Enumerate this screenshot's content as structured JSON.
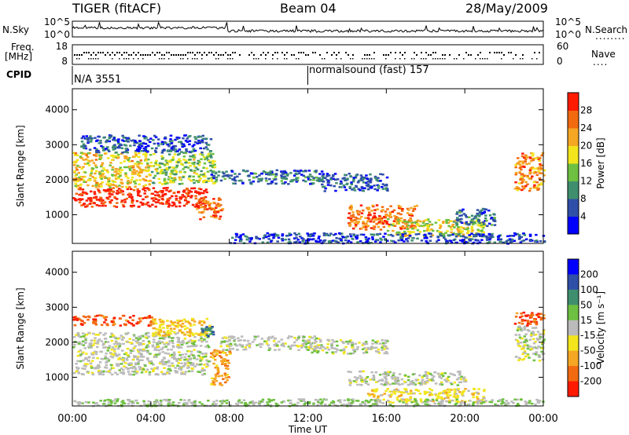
{
  "header": {
    "radar": "TIGER (fitACF)",
    "beam": "Beam 04",
    "date": "28/May/2009"
  },
  "noise_panel": {
    "left_label": "N.Sky",
    "right_label": "N.Search",
    "right_dots": "........",
    "y_ticks_left": [
      "10^5",
      "10^0"
    ],
    "y_ticks_right": [
      "10^5",
      "10^0"
    ]
  },
  "freq_panel": {
    "left_label_1": "Freq.",
    "left_label_2": "[MHz]",
    "right_label": "Nave",
    "right_dots": "....",
    "y_ticks_left": [
      "18",
      "8"
    ],
    "y_ticks_right": [
      "60",
      "0"
    ]
  },
  "cpid": {
    "label": "CPID",
    "segments": [
      {
        "name": "N/A 3551",
        "start_hour": 0
      },
      {
        "name": "normalsound (fast) 157",
        "start_hour": 12
      }
    ]
  },
  "chart_data": [
    {
      "type": "heatmap",
      "title": "",
      "xlabel": "",
      "ylabel": "Slant Range [km]",
      "x_range_hours": [
        0,
        24
      ],
      "x_ticks": [
        "00:00",
        "04:00",
        "08:00",
        "12:00",
        "16:00",
        "20:00",
        "00:00"
      ],
      "ylim": [
        180,
        4600
      ],
      "y_ticks": [
        1000,
        2000,
        3000,
        4000
      ],
      "colorbar": {
        "label": "Power [dB]",
        "ticks": [
          "4",
          "8",
          "12",
          "16",
          "20",
          "24",
          "28"
        ],
        "range": [
          0,
          30
        ],
        "colors": [
          "#0000ff",
          "#2f4fa8",
          "#3f8f6f",
          "#6ec040",
          "#f2e51c",
          "#f5a623",
          "#f26a10",
          "#ff1a00"
        ]
      },
      "regions": [
        {
          "t0": 0.0,
          "t1": 6.8,
          "r0": 1250,
          "r1": 1800,
          "value": 28
        },
        {
          "t0": 0.0,
          "t1": 4.0,
          "r0": 1800,
          "r1": 2800,
          "value": 18
        },
        {
          "t0": 4.0,
          "t1": 7.2,
          "r0": 1900,
          "r1": 2800,
          "value": 14
        },
        {
          "t0": 0.4,
          "t1": 7.0,
          "r0": 2800,
          "r1": 3300,
          "value": 6
        },
        {
          "t0": 6.3,
          "t1": 7.6,
          "r0": 900,
          "r1": 1500,
          "value": 24
        },
        {
          "t0": 7.0,
          "t1": 12.8,
          "r0": 1900,
          "r1": 2300,
          "value": 7
        },
        {
          "t0": 12.5,
          "t1": 16.0,
          "r0": 1700,
          "r1": 2200,
          "value": 6
        },
        {
          "t0": 14.0,
          "t1": 17.5,
          "r0": 600,
          "r1": 1300,
          "value": 24
        },
        {
          "t0": 16.0,
          "t1": 21.0,
          "r0": 400,
          "r1": 900,
          "value": 16
        },
        {
          "t0": 19.5,
          "t1": 21.5,
          "r0": 700,
          "r1": 1200,
          "value": 8
        },
        {
          "t0": 22.5,
          "t1": 24.0,
          "r0": 1700,
          "r1": 2800,
          "value": 22
        },
        {
          "t0": 8.0,
          "t1": 24.0,
          "r0": 200,
          "r1": 500,
          "value": 5
        }
      ]
    },
    {
      "type": "heatmap",
      "title": "",
      "xlabel": "Time UT",
      "ylabel": "Slant Range [km]",
      "x_range_hours": [
        0,
        24
      ],
      "x_ticks": [
        "00:00",
        "04:00",
        "08:00",
        "12:00",
        "16:00",
        "20:00",
        "00:00"
      ],
      "ylim": [
        180,
        4600
      ],
      "y_ticks": [
        1000,
        2000,
        3000,
        4000
      ],
      "colorbar": {
        "label": "Velocity [m s⁻¹]",
        "ticks": [
          "200",
          "100",
          "50",
          "15",
          "-15",
          "-50",
          "-100",
          "-200"
        ],
        "range": [
          -250,
          250
        ],
        "colors": [
          "#0000ff",
          "#2f4fa8",
          "#3f8f6f",
          "#6ec040",
          "#bbbbbb",
          "#f2e51c",
          "#f5a623",
          "#f26a10",
          "#ff1a00"
        ]
      },
      "regions": [
        {
          "t0": 0.0,
          "t1": 7.0,
          "r0": 1100,
          "r1": 2300,
          "value": 0
        },
        {
          "t0": 0.0,
          "t1": 4.0,
          "r0": 2500,
          "r1": 2800,
          "value": -180
        },
        {
          "t0": 4.0,
          "t1": 7.0,
          "r0": 2200,
          "r1": 2700,
          "value": -80
        },
        {
          "t0": 7.0,
          "t1": 8.0,
          "r0": 800,
          "r1": 1800,
          "value": -120
        },
        {
          "t0": 6.5,
          "t1": 7.3,
          "r0": 2200,
          "r1": 2500,
          "value": 120
        },
        {
          "t0": 7.5,
          "t1": 12.5,
          "r0": 1800,
          "r1": 2200,
          "value": 0
        },
        {
          "t0": 12.0,
          "t1": 16.0,
          "r0": 1700,
          "r1": 2100,
          "value": 0
        },
        {
          "t0": 14.0,
          "t1": 20.0,
          "r0": 800,
          "r1": 1200,
          "value": 0
        },
        {
          "t0": 15.0,
          "t1": 21.0,
          "r0": 300,
          "r1": 700,
          "value": -60
        },
        {
          "t0": 0.0,
          "t1": 24.0,
          "r0": 200,
          "r1": 400,
          "value": 30
        },
        {
          "t0": 22.5,
          "t1": 24.0,
          "r0": 1500,
          "r1": 2500,
          "value": 0
        },
        {
          "t0": 22.5,
          "t1": 24.0,
          "r0": 2500,
          "r1": 2900,
          "value": -180
        }
      ]
    }
  ],
  "colors": {
    "axis": "#000000",
    "empty": "#ffffff"
  }
}
